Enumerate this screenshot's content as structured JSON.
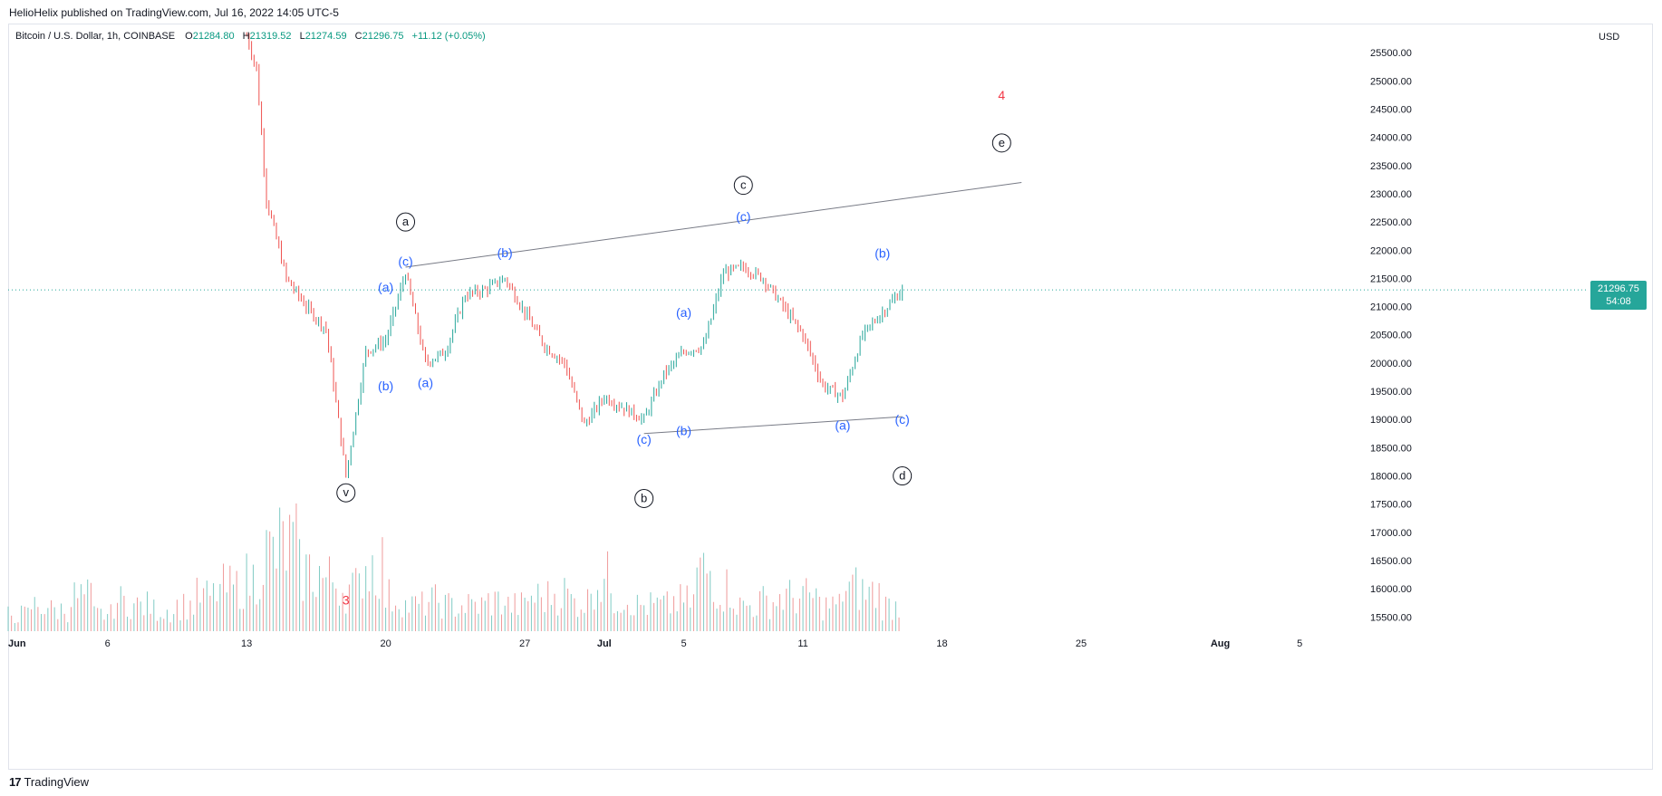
{
  "publisher": "HelioHelix published on TradingView.com, Jul 16, 2022 14:05 UTC-5",
  "legend": {
    "symbol": "Bitcoin / U.S. Dollar, 1h, COINBASE",
    "open_label": "O",
    "open": "21284.80",
    "high_label": "H",
    "high": "21319.52",
    "low_label": "L",
    "low": "21274.59",
    "close_label": "C",
    "close": "21296.75",
    "change": "+11.12 (+0.05%)"
  },
  "axis_currency": "USD",
  "price_tag": {
    "price": "21296.75",
    "countdown": "54:08"
  },
  "footer": {
    "brand": "TradingView",
    "logo_glyph": "17"
  },
  "colors": {
    "up": "#26a69a",
    "down": "#ef5350",
    "wave_blue": "#2962ff",
    "wave_red": "#f23645",
    "line": "#787b86"
  },
  "chart_data": {
    "type": "candlestick",
    "symbol": "BTC/USD",
    "exchange": "COINBASE",
    "interval": "1h",
    "y_unit": "USD",
    "ylim": [
      15200,
      26000
    ],
    "yticks": [
      15500,
      16000,
      16500,
      17000,
      17500,
      18000,
      18500,
      19000,
      19500,
      20000,
      20500,
      21000,
      21500,
      22000,
      22500,
      23000,
      23500,
      24000,
      24500,
      25000,
      25500
    ],
    "xlim": [
      "2022-06-01",
      "2022-08-08"
    ],
    "xticks": [
      {
        "date": "2022-06-01",
        "label": "Jun",
        "bold": true
      },
      {
        "date": "2022-06-06",
        "label": "6"
      },
      {
        "date": "2022-06-13",
        "label": "13"
      },
      {
        "date": "2022-06-20",
        "label": "20"
      },
      {
        "date": "2022-06-27",
        "label": "27"
      },
      {
        "date": "2022-07-01",
        "label": "Jul",
        "bold": true
      },
      {
        "date": "2022-07-05",
        "label": "5"
      },
      {
        "date": "2022-07-11",
        "label": "11"
      },
      {
        "date": "2022-07-18",
        "label": "18"
      },
      {
        "date": "2022-07-25",
        "label": "25"
      },
      {
        "date": "2022-08-01",
        "label": "Aug",
        "bold": true
      },
      {
        "date": "2022-08-05",
        "label": "5"
      }
    ],
    "last_price": 21296.75,
    "price_path": [
      [
        "2022-06-13",
        25800
      ],
      [
        "2022-06-13",
        25200
      ],
      [
        "2022-06-14",
        22900
      ],
      [
        "2022-06-15",
        21500
      ],
      [
        "2022-06-16",
        21000
      ],
      [
        "2022-06-17",
        20600
      ],
      [
        "2022-06-18",
        18000
      ],
      [
        "2022-06-19",
        20200
      ],
      [
        "2022-06-20",
        20400
      ],
      [
        "2022-06-21",
        21600
      ],
      [
        "2022-06-22",
        20000
      ],
      [
        "2022-06-23",
        20200
      ],
      [
        "2022-06-24",
        21200
      ],
      [
        "2022-06-25",
        21300
      ],
      [
        "2022-06-26",
        21500
      ],
      [
        "2022-06-27",
        20900
      ],
      [
        "2022-06-28",
        20300
      ],
      [
        "2022-06-29",
        20000
      ],
      [
        "2022-06-30",
        18900
      ],
      [
        "2022-07-01",
        19400
      ],
      [
        "2022-07-02",
        19200
      ],
      [
        "2022-07-03",
        19000
      ],
      [
        "2022-07-04",
        19800
      ],
      [
        "2022-07-05",
        20200
      ],
      [
        "2022-07-06",
        20300
      ],
      [
        "2022-07-07",
        21600
      ],
      [
        "2022-07-08",
        21700
      ],
      [
        "2022-07-09",
        21500
      ],
      [
        "2022-07-10",
        21000
      ],
      [
        "2022-07-11",
        20500
      ],
      [
        "2022-07-12",
        19600
      ],
      [
        "2022-07-13",
        19400
      ],
      [
        "2022-07-14",
        20500
      ],
      [
        "2022-07-15",
        20900
      ],
      [
        "2022-07-16",
        21296.75
      ]
    ],
    "volume_relative": [
      0.2,
      0.3,
      0.25,
      0.4,
      0.2,
      0.35,
      0.3,
      0.25,
      0.3,
      0.4,
      0.5,
      0.6,
      0.9,
      1.0,
      0.7,
      0.6,
      0.5,
      0.8,
      0.4,
      0.3,
      0.35,
      0.3,
      0.3,
      0.35,
      0.3,
      0.4,
      0.45,
      0.35,
      0.6,
      0.4,
      0.3,
      0.3,
      0.35,
      0.7,
      0.5,
      0.3,
      0.35,
      0.4,
      0.4,
      0.3,
      0.5,
      0.45,
      0.3
    ],
    "trendlines": [
      {
        "from": [
          "2022-06-21",
          21700
        ],
        "to": [
          "2022-07-22",
          23200
        ]
      },
      {
        "from": [
          "2022-07-03",
          18750
        ],
        "to": [
          "2022-07-16",
          19050
        ]
      }
    ],
    "annotations": [
      {
        "text": "a",
        "circled": true,
        "date": "2022-06-21",
        "price": 22500
      },
      {
        "text": "c",
        "circled": true,
        "date": "2022-07-08",
        "price": 23150
      },
      {
        "text": "e",
        "circled": true,
        "date": "2022-07-21",
        "price": 23900
      },
      {
        "text": "b",
        "circled": true,
        "date": "2022-07-03",
        "price": 17600
      },
      {
        "text": "d",
        "circled": true,
        "date": "2022-07-16",
        "price": 18000
      },
      {
        "text": "v",
        "circled": true,
        "date": "2022-06-18",
        "price": 17700
      },
      {
        "text": "4",
        "color": "red",
        "date": "2022-07-21",
        "price": 24750
      },
      {
        "text": "3",
        "color": "red",
        "date": "2022-06-18",
        "price": 15800
      },
      {
        "text": "(a)",
        "date": "2022-06-20",
        "price": 21350
      },
      {
        "text": "(c)",
        "date": "2022-06-21",
        "price": 21800
      },
      {
        "text": "(b)",
        "date": "2022-06-26",
        "price": 21960
      },
      {
        "text": "(b)",
        "date": "2022-06-20",
        "price": 19600
      },
      {
        "text": "(a)",
        "date": "2022-06-22",
        "price": 19650
      },
      {
        "text": "(c)",
        "date": "2022-07-03",
        "price": 18650
      },
      {
        "text": "(b)",
        "date": "2022-07-05",
        "price": 18800
      },
      {
        "text": "(a)",
        "date": "2022-07-05",
        "price": 20900
      },
      {
        "text": "(c)",
        "date": "2022-07-08",
        "price": 22600
      },
      {
        "text": "(b)",
        "date": "2022-07-15",
        "price": 21950
      },
      {
        "text": "(a)",
        "date": "2022-07-13",
        "price": 18900
      },
      {
        "text": "(c)",
        "date": "2022-07-16",
        "price": 19000
      }
    ]
  }
}
